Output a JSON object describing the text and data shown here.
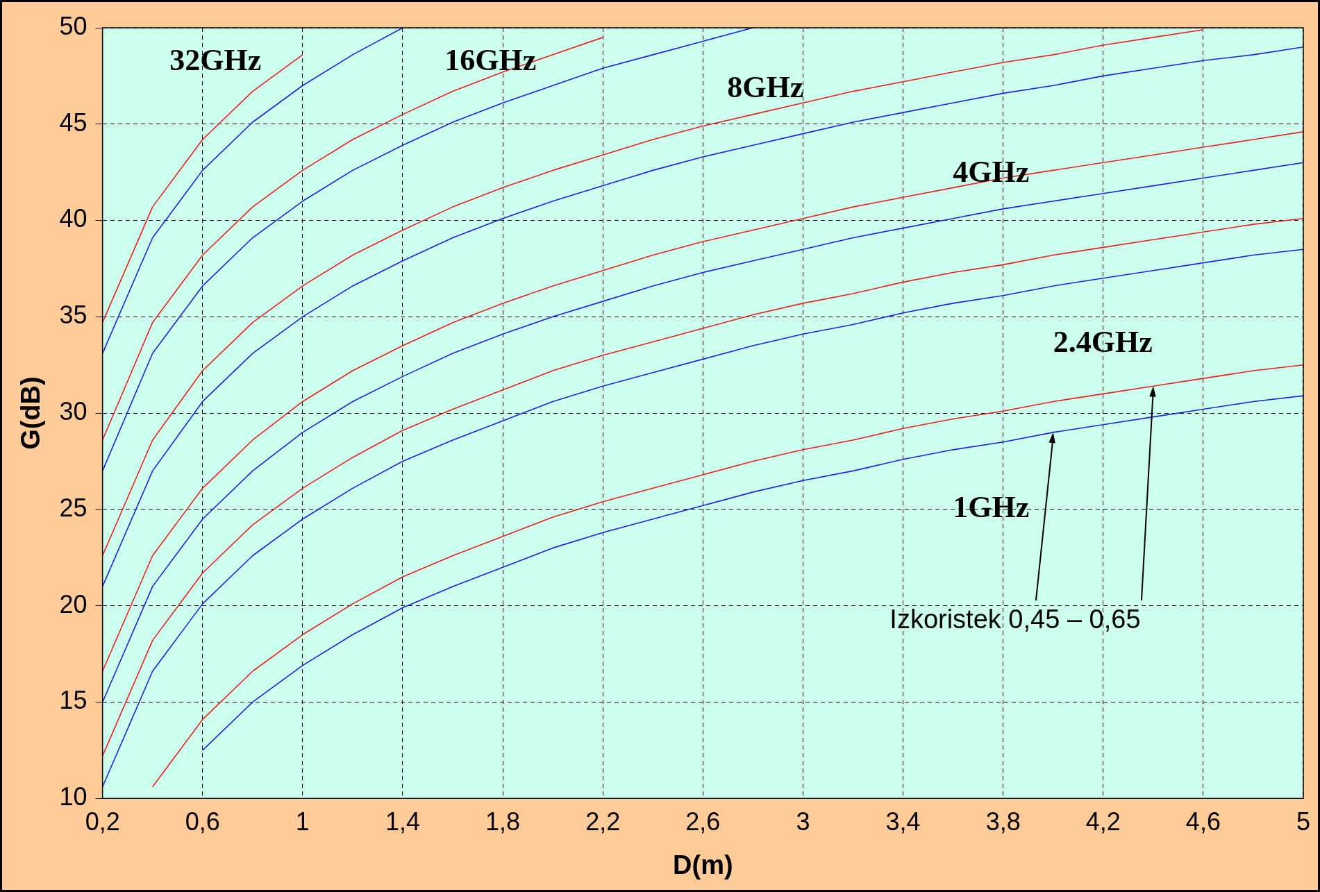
{
  "chart_data": {
    "type": "line",
    "xlabel": "D(m)",
    "ylabel": "G(dB)",
    "x": [
      0.2,
      0.4,
      0.6,
      0.8,
      1.0,
      1.2,
      1.4,
      1.6,
      1.8,
      2.0,
      2.2,
      2.4,
      2.6,
      2.8,
      3.0,
      3.2,
      3.4,
      3.6,
      3.8,
      4.0,
      4.2,
      4.4,
      4.6,
      4.8,
      5.0
    ],
    "series": [
      {
        "color": "#2020e0",
        "values": [
          null,
          null,
          12.5,
          15.0,
          16.9,
          18.5,
          19.9,
          21.0,
          22.0,
          23.0,
          23.8,
          24.5,
          25.2,
          25.9,
          26.5,
          27.0,
          27.6,
          28.1,
          28.5,
          29.0,
          29.4,
          29.8,
          30.2,
          30.6,
          30.9
        ]
      },
      {
        "color": "#e82020",
        "values": [
          null,
          10.6,
          14.1,
          16.6,
          18.5,
          20.1,
          21.5,
          22.6,
          23.6,
          24.6,
          25.4,
          26.1,
          26.8,
          27.5,
          28.1,
          28.6,
          29.2,
          29.7,
          30.1,
          30.6,
          31.0,
          31.4,
          31.8,
          32.2,
          32.5
        ]
      },
      {
        "color": "#2020e0",
        "values": [
          10.6,
          16.6,
          20.1,
          22.6,
          24.5,
          26.1,
          27.5,
          28.6,
          29.6,
          30.6,
          31.4,
          32.1,
          32.8,
          33.5,
          34.1,
          34.6,
          35.2,
          35.7,
          36.1,
          36.6,
          37.0,
          37.4,
          37.8,
          38.2,
          38.5
        ]
      },
      {
        "color": "#e82020",
        "values": [
          12.2,
          18.2,
          21.7,
          24.2,
          26.1,
          27.7,
          29.1,
          30.2,
          31.2,
          32.2,
          33.0,
          33.7,
          34.4,
          35.1,
          35.7,
          36.2,
          36.8,
          37.3,
          37.7,
          38.2,
          38.6,
          39.0,
          39.4,
          39.8,
          40.1
        ]
      },
      {
        "color": "#2020e0",
        "values": [
          15.0,
          21.0,
          24.5,
          27.0,
          29.0,
          30.6,
          31.9,
          33.1,
          34.1,
          35.0,
          35.8,
          36.6,
          37.3,
          37.9,
          38.5,
          39.1,
          39.6,
          40.1,
          40.6,
          41.0,
          41.4,
          41.8,
          42.2,
          42.6,
          43.0
        ]
      },
      {
        "color": "#e82020",
        "values": [
          16.6,
          22.6,
          26.1,
          28.6,
          30.6,
          32.2,
          33.5,
          34.7,
          35.7,
          36.6,
          37.4,
          38.2,
          38.9,
          39.5,
          40.1,
          40.7,
          41.2,
          41.7,
          42.2,
          42.6,
          43.0,
          43.4,
          43.8,
          44.2,
          44.6
        ]
      },
      {
        "color": "#2020e0",
        "values": [
          21.0,
          27.0,
          30.6,
          33.1,
          35.0,
          36.6,
          37.9,
          39.1,
          40.1,
          41.0,
          41.8,
          42.6,
          43.3,
          43.9,
          44.5,
          45.1,
          45.6,
          46.1,
          46.6,
          47.0,
          47.5,
          47.9,
          48.3,
          48.6,
          49.0
        ]
      },
      {
        "color": "#e82020",
        "values": [
          22.6,
          28.6,
          32.2,
          34.7,
          36.6,
          38.2,
          39.5,
          40.7,
          41.7,
          42.6,
          43.4,
          44.2,
          44.9,
          45.5,
          46.1,
          46.7,
          47.2,
          47.7,
          48.2,
          48.6,
          49.1,
          49.5,
          49.9,
          null,
          null
        ]
      },
      {
        "color": "#2020e0",
        "values": [
          27.0,
          33.1,
          36.6,
          39.1,
          41.0,
          42.6,
          43.9,
          45.1,
          46.1,
          47.0,
          47.9,
          48.6,
          49.3,
          50.0,
          null,
          null,
          null,
          null,
          null,
          null,
          null,
          null,
          null,
          null,
          null
        ]
      },
      {
        "color": "#e82020",
        "values": [
          28.6,
          34.7,
          38.2,
          40.7,
          42.6,
          44.2,
          45.5,
          46.7,
          47.7,
          48.6,
          49.5,
          null,
          null,
          null,
          null,
          null,
          null,
          null,
          null,
          null,
          null,
          null,
          null,
          null,
          null
        ]
      },
      {
        "color": "#2020e0",
        "values": [
          33.1,
          39.1,
          42.6,
          45.1,
          47.0,
          48.6,
          50.0,
          null,
          null,
          null,
          null,
          null,
          null,
          null,
          null,
          null,
          null,
          null,
          null,
          null,
          null,
          null,
          null,
          null,
          null
        ]
      },
      {
        "color": "#e82020",
        "values": [
          34.7,
          40.7,
          44.2,
          46.7,
          48.6,
          null,
          null,
          null,
          null,
          null,
          null,
          null,
          null,
          null,
          null,
          null,
          null,
          null,
          null,
          null,
          null,
          null,
          null,
          null,
          null
        ]
      }
    ],
    "xlim": [
      0.2,
      5
    ],
    "xticks": [
      {
        "value": 0.2,
        "label": "0,2"
      },
      {
        "value": 0.6,
        "label": "0,6"
      },
      1,
      {
        "value": 1.4,
        "label": "1,4"
      },
      {
        "value": 1.8,
        "label": "1,8"
      },
      {
        "value": 2.2,
        "label": "2,2"
      },
      {
        "value": 2.6,
        "label": "2,6"
      },
      3,
      {
        "value": 3.4,
        "label": "3,4"
      },
      {
        "value": 3.8,
        "label": "3,8"
      },
      {
        "value": 4.2,
        "label": "4,2"
      },
      {
        "value": 4.6,
        "label": "4,6"
      },
      5
    ],
    "ylim": [
      10,
      50
    ],
    "yticks": [
      10,
      15,
      20,
      25,
      30,
      35,
      40,
      45,
      50
    ],
    "grid": true,
    "annotations": [
      "32GHz",
      "16GHz",
      "8GHz",
      "4GHz",
      "2.4GHz",
      "1GHz",
      {
        "text": "Izkoristek 0,45 – 0,65",
        "x": 4.0,
        "y": 29.0
      }
    ]
  }
}
